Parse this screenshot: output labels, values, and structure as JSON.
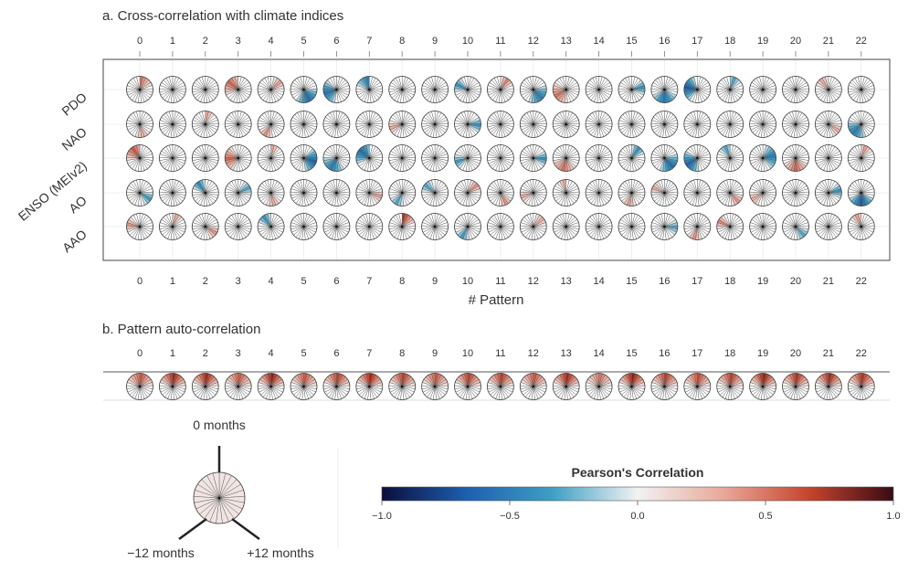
{
  "chart_data": [
    {
      "type": "polar-heatmap-grid",
      "title": "a. Cross-correlation with climate indices",
      "xlabel": "# Pattern",
      "patterns": [
        0,
        1,
        2,
        3,
        4,
        5,
        6,
        7,
        8,
        9,
        10,
        11,
        12,
        13,
        14,
        15,
        16,
        17,
        18,
        19,
        20,
        21,
        22
      ],
      "rows": [
        "PDO",
        "NAO",
        "ENSO (MEIv2)",
        "AO",
        "AAO"
      ],
      "lags": "-12 to +12 months",
      "values": {
        "PDO": [
          0.5,
          0,
          0,
          0.55,
          0.35,
          -0.6,
          -0.55,
          -0.5,
          0,
          0,
          -0.4,
          0.45,
          -0.5,
          0.5,
          0,
          -0.4,
          -0.55,
          -0.7,
          -0.3,
          0,
          0,
          0.3,
          0
        ],
        "NAO": [
          0.3,
          0,
          0.35,
          0,
          0.4,
          0,
          0,
          0,
          0.3,
          0,
          -0.4,
          0,
          0,
          0,
          0,
          0,
          0,
          0,
          0,
          0,
          0,
          0.3,
          -0.5
        ],
        "ENSO (MEIv2)": [
          0.6,
          0,
          0,
          0.55,
          0.35,
          -0.65,
          -0.5,
          -0.6,
          0,
          0,
          -0.35,
          0,
          -0.4,
          0.5,
          0,
          -0.4,
          -0.6,
          -0.65,
          -0.3,
          -0.5,
          0.55,
          0,
          0.35
        ],
        "AO": [
          -0.35,
          0,
          -0.45,
          -0.3,
          0.3,
          0,
          0,
          0.35,
          -0.3,
          -0.3,
          0.4,
          0.4,
          0.3,
          0.3,
          0,
          0.35,
          0.3,
          0,
          0.4,
          0.3,
          0,
          -0.4,
          -0.7
        ],
        "AAO": [
          0.4,
          0.3,
          0.4,
          0,
          -0.4,
          0,
          0,
          0,
          0.75,
          0,
          -0.35,
          0,
          0.3,
          0,
          0,
          0,
          -0.3,
          0.4,
          0.45,
          0,
          -0.3,
          0,
          0.35
        ]
      }
    },
    {
      "type": "polar-heatmap-row",
      "title": "b. Pattern auto-correlation",
      "patterns": [
        0,
        1,
        2,
        3,
        4,
        5,
        6,
        7,
        8,
        9,
        10,
        11,
        12,
        13,
        14,
        15,
        16,
        17,
        18,
        19,
        20,
        21,
        22
      ],
      "values": [
        0.6,
        0.8,
        0.8,
        0.6,
        0.85,
        0.6,
        0.7,
        0.8,
        0.7,
        0.6,
        0.7,
        0.7,
        0.6,
        0.8,
        0.5,
        0.85,
        0.7,
        0.65,
        0.7,
        0.85,
        0.75,
        0.8,
        0.75
      ]
    }
  ],
  "legend": {
    "zero_label": "0 months",
    "minus_label": "−12 months",
    "plus_label": "+12 months"
  },
  "colorbar": {
    "title": "Pearson's Correlation",
    "ticks": [
      "−1.0",
      "−0.5",
      "0.0",
      "0.5",
      "1.0"
    ],
    "colors": [
      "#0a0f3c",
      "#1d5fb0",
      "#3e9fc4",
      "#f2f2f2",
      "#e9a89a",
      "#c7452d",
      "#3a0a14"
    ]
  }
}
